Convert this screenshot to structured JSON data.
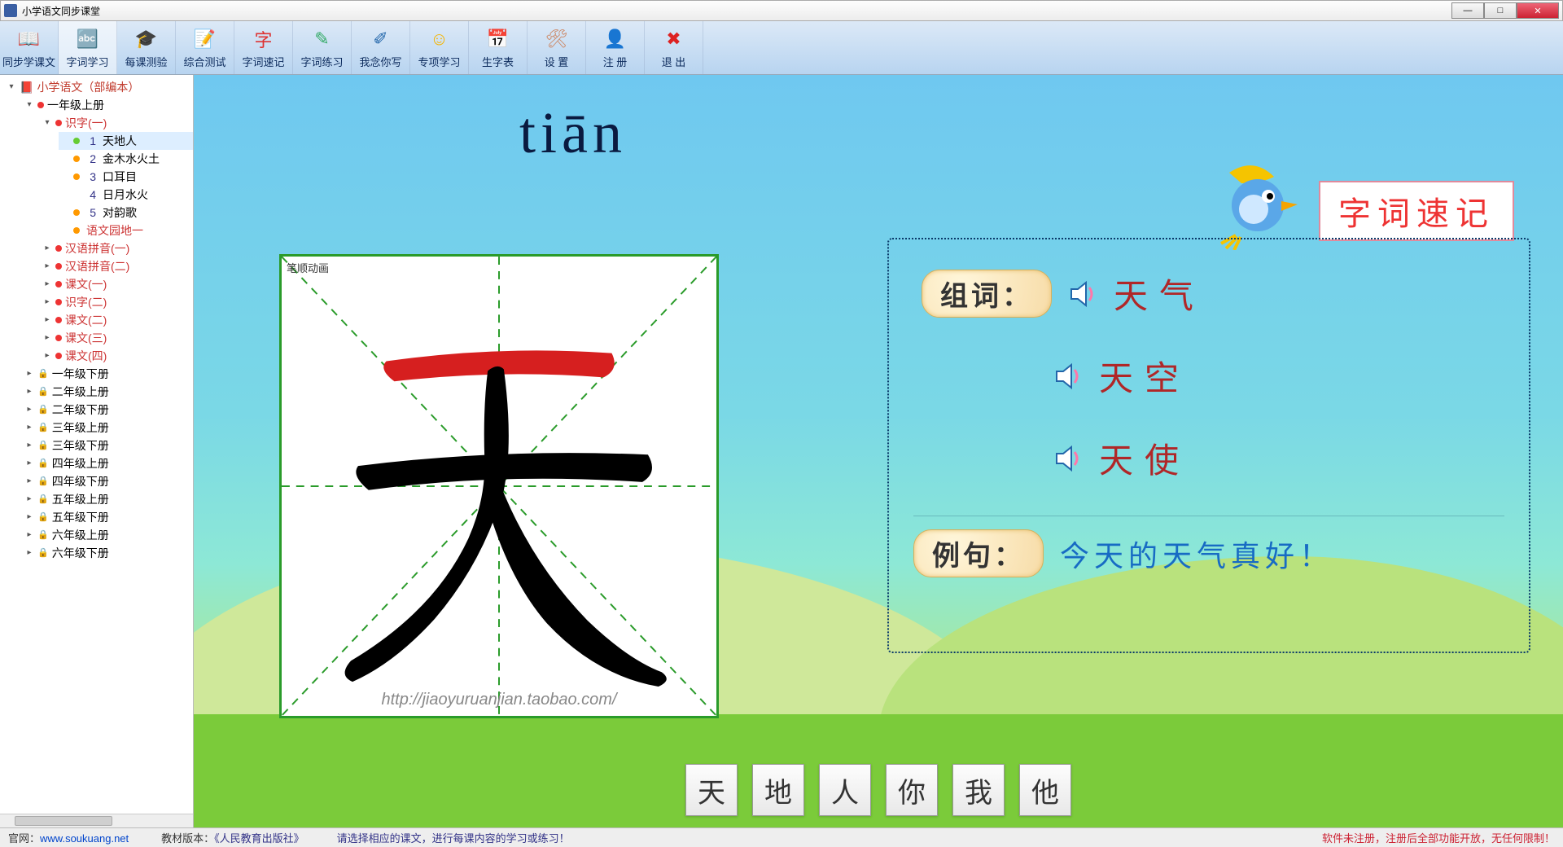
{
  "window": {
    "title": "小学语文同步课堂"
  },
  "toolbar": [
    {
      "label": "同步学课文",
      "icon": "📖",
      "ic": "#e66aa0"
    },
    {
      "label": "字词学习",
      "icon": "🔤",
      "ic": "#f0c020",
      "active": true
    },
    {
      "label": "每课测验",
      "icon": "🎓",
      "ic": "#333"
    },
    {
      "label": "综合测试",
      "icon": "📝",
      "ic": "#e29a3a"
    },
    {
      "label": "字词速记",
      "icon": "字",
      "ic": "#d33"
    },
    {
      "label": "字词练习",
      "icon": "✎",
      "ic": "#3a6"
    },
    {
      "label": "我念你写",
      "icon": "✐",
      "ic": "#26a"
    },
    {
      "label": "专项学习",
      "icon": "☺",
      "ic": "#f5b400"
    },
    {
      "label": "生字表",
      "icon": "📅",
      "ic": "#3a6"
    },
    {
      "label": "设 置",
      "icon": "🛠",
      "ic": "#c86"
    },
    {
      "label": "注 册",
      "icon": "👤",
      "ic": "#26c"
    },
    {
      "label": "退 出",
      "icon": "✖",
      "ic": "#d22"
    }
  ],
  "tree": {
    "root": "小学语文（部编本）",
    "g1a": "一年级上册",
    "shizi1": "识字(一)",
    "lessons": [
      {
        "n": "1",
        "t": "天地人",
        "dot": "d-grn"
      },
      {
        "n": "2",
        "t": "金木水火土",
        "dot": "d-ora"
      },
      {
        "n": "3",
        "t": "口耳目",
        "dot": "d-ora"
      },
      {
        "n": "4",
        "t": "日月水火",
        "dot": ""
      },
      {
        "n": "5",
        "t": "对韵歌",
        "dot": "d-ora"
      }
    ],
    "yuwenyuandi": "语文园地一",
    "siblings": [
      "汉语拼音(一)",
      "汉语拼音(二)",
      "课文(一)",
      "识字(二)",
      "课文(二)",
      "课文(三)",
      "课文(四)"
    ],
    "grades": [
      "一年级下册",
      "二年级上册",
      "二年级下册",
      "三年级上册",
      "三年级下册",
      "四年级上册",
      "四年级下册",
      "五年级上册",
      "五年级下册",
      "六年级上册",
      "六年级下册"
    ]
  },
  "learn": {
    "pinyin": "tiān",
    "box_label": "笔顺动画",
    "watermark": "http://jiaoyuruanjian.taobao.com/",
    "zuci_label": "组词：",
    "liju_label": "例句：",
    "words": [
      "天气",
      "天空",
      "天使"
    ],
    "sentence": "今天的天气真好！",
    "speed_label": "字词速记",
    "chars": [
      "天",
      "地",
      "人",
      "你",
      "我",
      "他"
    ]
  },
  "status": {
    "site_label": "官网：",
    "site": "www.soukuang.net",
    "ver_label": "教材版本：",
    "ver": "《人民教育出版社》",
    "hint": "请选择相应的课文，进行每课内容的学习或练习！",
    "reg": "软件未注册，注册后全部功能开放，无任何限制！"
  },
  "colors": {
    "stroke_active": "#d61f1f"
  }
}
